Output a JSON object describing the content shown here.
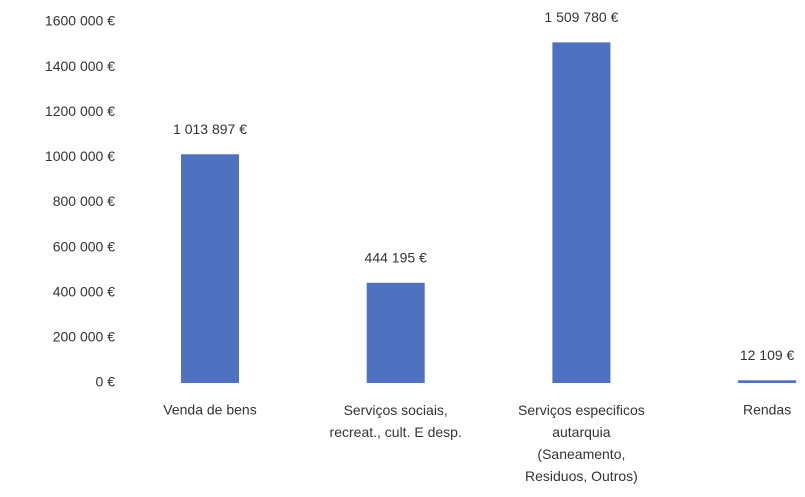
{
  "chart_data": {
    "type": "bar",
    "categories": [
      "Venda de bens",
      "Serviços sociais,\nrecreat., cult. E desp.",
      "Serviços especificos\nautarquia\n(Saneamento,\nResiduos, Outros)",
      "Rendas"
    ],
    "values": [
      1013897,
      444195,
      1509780,
      12109
    ],
    "value_labels": [
      "1 013 897 €",
      "444 195 €",
      "1 509 780 €",
      "12 109 €"
    ],
    "color": "#4f72c0",
    "ylim": [
      0,
      1600000
    ],
    "yticks": [
      {
        "value": 0,
        "label": "0 €"
      },
      {
        "value": 200000,
        "label": "200 000 €"
      },
      {
        "value": 400000,
        "label": "400 000 €"
      },
      {
        "value": 600000,
        "label": "600 000 €"
      },
      {
        "value": 800000,
        "label": "800 000 €"
      },
      {
        "value": 1000000,
        "label": "1000 000 €"
      },
      {
        "value": 1200000,
        "label": "1200 000 €"
      },
      {
        "value": 1400000,
        "label": "1400 000 €"
      },
      {
        "value": 1600000,
        "label": "1600 000 €"
      }
    ],
    "grid": false
  }
}
